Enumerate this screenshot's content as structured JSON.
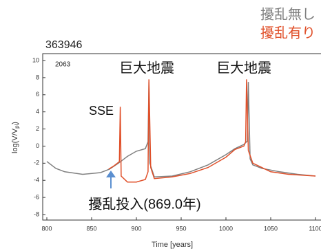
{
  "chart_data": {
    "type": "line",
    "title": "363946",
    "subtitle": "2063",
    "xlabel": "Time [years]",
    "ylabel": "log(V/V",
    "ylabel_sub": "pl",
    "ylabel_end": ")",
    "annotations": [
      "SSE",
      "巨大地震",
      "巨大地震",
      "擾乱投入(869.0年)"
    ],
    "xlim": [
      800,
      1100
    ],
    "xticks": [
      800,
      850,
      900,
      950,
      1000,
      1050,
      1100
    ],
    "ylim": [
      -8,
      10
    ],
    "yticks": [
      -8,
      -6,
      -4,
      -2,
      0,
      2,
      4,
      6,
      8,
      10
    ],
    "legend": "top-right",
    "series": [
      {
        "name": "擾乱無し",
        "color": "#808080",
        "x": [
          800,
          810,
          820,
          840,
          860,
          870,
          880,
          890,
          900,
          910,
          913,
          914,
          915,
          920,
          940,
          960,
          980,
          1000,
          1010,
          1020,
          1024,
          1025,
          1027,
          1030,
          1040,
          1060,
          1080,
          1100
        ],
        "values": [
          -1.8,
          -2.6,
          -3.0,
          -3.3,
          -3.1,
          -2.7,
          -2.0,
          -1.2,
          -0.6,
          -0.3,
          0.5,
          7.5,
          -2.0,
          -3.6,
          -3.5,
          -3.0,
          -2.2,
          -1.0,
          -0.3,
          0.2,
          0.6,
          7.5,
          -1.5,
          -2.2,
          -2.6,
          -3.0,
          -3.3,
          -3.5
        ]
      },
      {
        "name": "擾乱有り",
        "color": "#e0502a",
        "x": [
          869,
          875,
          880,
          881,
          882,
          883,
          890,
          900,
          910,
          913,
          914,
          916,
          920,
          940,
          960,
          980,
          1000,
          1010,
          1020,
          1022,
          1023,
          1025,
          1030,
          1050,
          1070,
          1100
        ],
        "values": [
          -2.7,
          -2.3,
          -1.9,
          -1.8,
          4.6,
          -3.5,
          -4.2,
          -4.2,
          -3.9,
          -3.0,
          7.8,
          -2.5,
          -3.8,
          -3.6,
          -3.2,
          -2.5,
          -1.3,
          -0.4,
          0.0,
          0.5,
          7.8,
          -0.5,
          -2.0,
          -3.0,
          -3.3,
          -3.5
        ]
      }
    ]
  }
}
